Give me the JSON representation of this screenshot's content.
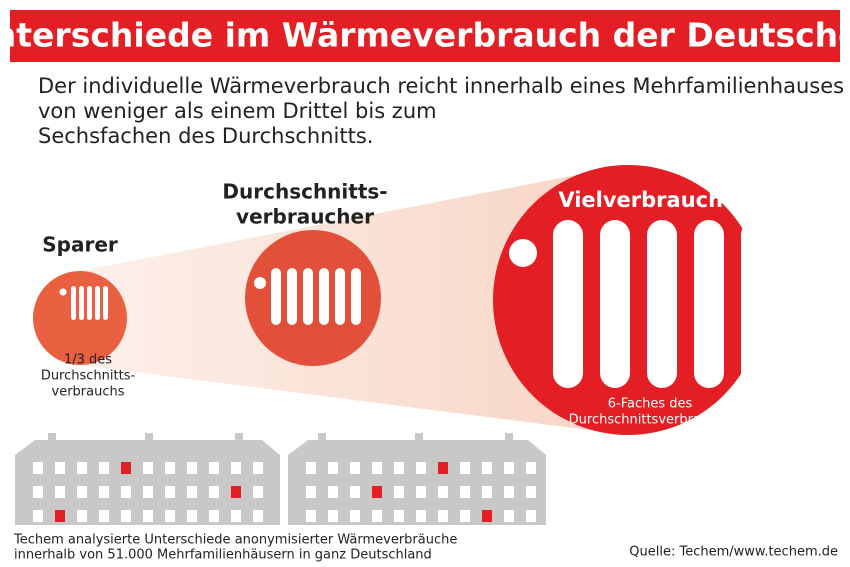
{
  "header": {
    "title": "Unterschiede im Wärmeverbrauch der Deutschen",
    "intro": [
      "Der individuelle Wärmeverbrauch reicht innerhalb eines Mehrfamilienhauses",
      "von weniger als einem Drittel bis zum",
      "Sechsfachen des Durchschnitts."
    ]
  },
  "groups": [
    {
      "label": [
        "Sparer"
      ],
      "caption": [
        "1/3 des",
        "Durchschnitts-",
        "verbrauchs"
      ]
    },
    {
      "label": [
        "Durchschnitts-",
        "verbraucher"
      ],
      "caption": []
    },
    {
      "label": [
        "Vielverbraucher"
      ],
      "caption": [
        "6-Faches des",
        "Durchschnittsverbrauchs"
      ]
    }
  ],
  "footer": {
    "note": [
      "Techem analysierte Unterschiede anonymisierter Wärmeverbräuche",
      "innerhalb von 51.000 Mehrfamilienhäusern in ganz Deutschland"
    ],
    "source": "Quelle: Techem/www.techem.de"
  }
}
